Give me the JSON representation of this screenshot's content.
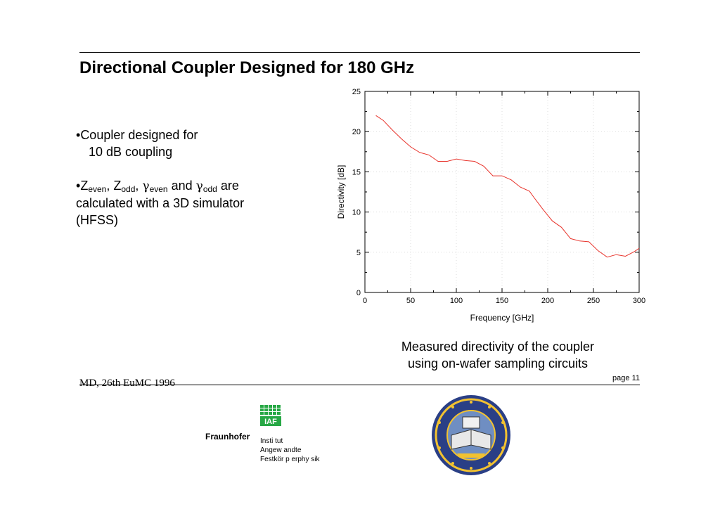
{
  "slide": {
    "title": "Directional Coupler Designed for 180 GHz",
    "bullet1": {
      "prefix": "•",
      "line1": "Coupler designed for",
      "line2": "10 dB coupling"
    },
    "bullet2": {
      "prefix": "•",
      "z": "Z",
      "sub_even": "even",
      "sep1": ", ",
      "sub_odd": "odd",
      "sep2": ", ",
      "gamma": "γ",
      "and": " and ",
      "tail1": " are",
      "line2": "calculated with a 3D simulator",
      "line3": "(HFSS)"
    },
    "caption_line1": "Measured directivity of the coupler",
    "caption_line2": "using on-wafer sampling circuits",
    "footer_left": "MD, 26th EuMC 1996",
    "page_number": "page 11"
  },
  "logos": {
    "fraunhofer_name": "Fraunhofer",
    "iaf_text": "IAF",
    "institute_lines": [
      "Insti tut",
      "Angew andte",
      "Festkör p erphy sik"
    ],
    "fraunhofer_color": "#27a845",
    "seal_name": "university-seal"
  },
  "chart_data": {
    "type": "line",
    "xlabel": "Frequency [GHz]",
    "ylabel": "Directivity [dB]",
    "xlim": [
      0,
      300
    ],
    "ylim": [
      0,
      25
    ],
    "xticks": [
      0,
      50,
      100,
      150,
      200,
      250,
      300
    ],
    "yticks": [
      0,
      5,
      10,
      15,
      20,
      25
    ],
    "grid": true,
    "line_color": "#e8342c",
    "series": [
      {
        "x": [
          12,
          20,
          30,
          40,
          50,
          60,
          70,
          80,
          90,
          100,
          110,
          120,
          130,
          140,
          150,
          160,
          170,
          180,
          185,
          195,
          205,
          215,
          225,
          235,
          245,
          255,
          265,
          275,
          285,
          295,
          300
        ],
        "y": [
          22.0,
          21.4,
          20.2,
          19.1,
          18.1,
          17.4,
          17.1,
          16.3,
          16.3,
          16.6,
          16.4,
          16.3,
          15.7,
          14.5,
          14.5,
          14.0,
          13.1,
          12.6,
          11.8,
          10.3,
          8.9,
          8.1,
          6.7,
          6.4,
          6.3,
          5.2,
          4.4,
          4.7,
          4.5,
          5.1,
          5.5
        ]
      }
    ]
  }
}
